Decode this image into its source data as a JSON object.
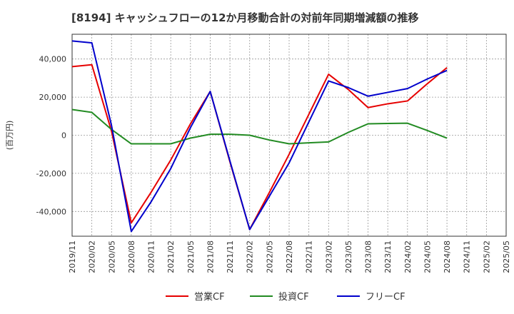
{
  "chart_data": {
    "type": "line",
    "title": "[8194]  キャッシュフローの12か月移動合計の対前年同期増減額の推移",
    "ylabel": "(百万円)",
    "xlabel": "",
    "categories": [
      "2019/11",
      "2020/02",
      "2020/05",
      "2020/08",
      "2020/11",
      "2021/02",
      "2021/05",
      "2021/08",
      "2021/11",
      "2022/02",
      "2022/05",
      "2022/08",
      "2022/11",
      "2023/02",
      "2023/05",
      "2023/08",
      "2023/11",
      "2024/02",
      "2024/05",
      "2024/08",
      "2024/11",
      "2025/02",
      "2025/05"
    ],
    "ylim": [
      -53000,
      53000
    ],
    "yticks": [
      40000,
      20000,
      0,
      -20000,
      -40000
    ],
    "ytick_labels": [
      "40,000",
      "20,000",
      "0",
      "-20,000",
      "-40,000"
    ],
    "grid": true,
    "legend_position": "bottom",
    "series": [
      {
        "name": "営業CF",
        "color": "#e60000",
        "values": [
          36000,
          37000,
          2000,
          -46000,
          -30000,
          -13000,
          6000,
          23000,
          -14000,
          -49500,
          -30000,
          -10000,
          11000,
          32000,
          24000,
          14500,
          16500,
          18000,
          27000,
          35500,
          null,
          null,
          null
        ]
      },
      {
        "name": "投資CF",
        "color": "#228b22",
        "values": [
          13500,
          12000,
          3000,
          -4500,
          -4500,
          -4500,
          -1500,
          500,
          500,
          0,
          -2500,
          -4500,
          -4000,
          -3500,
          1500,
          6000,
          6200,
          6300,
          2500,
          -1500,
          null,
          null,
          null
        ]
      },
      {
        "name": "フリーCF",
        "color": "#0000cc",
        "values": [
          49500,
          48500,
          5000,
          -50500,
          -35000,
          -17500,
          4000,
          23000,
          -13500,
          -49500,
          -32000,
          -14500,
          7000,
          28500,
          25000,
          20500,
          22500,
          24500,
          29500,
          34000,
          null,
          null,
          null
        ]
      }
    ]
  }
}
